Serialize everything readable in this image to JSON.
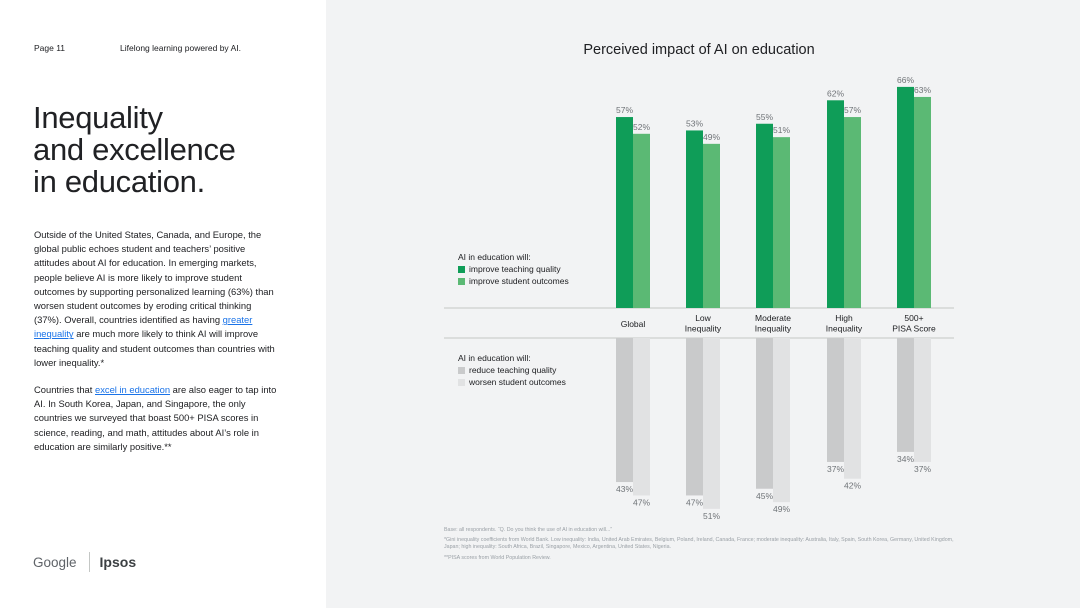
{
  "header": {
    "page_label": "Page 11",
    "running_title": "Lifelong learning powered by AI."
  },
  "headline": [
    "Inequality",
    "and excellence",
    "in education."
  ],
  "body": {
    "p1_a": "Outside of the United States, Canada, and Europe, the global public echoes student and teachers’ positive attitudes about AI for education. In emerging markets, people believe AI is more likely to improve student outcomes by supporting personalized learning (63%) than worsen student outcomes by eroding critical thinking (37%). Overall, countries identified as having ",
    "p1_link": "greater inequality",
    "p1_b": " are much more likely to think AI will improve teaching quality and student outcomes than countries with lower inequality.*",
    "p2_a": "Countries that ",
    "p2_link": "excel in education",
    "p2_b": " are also eager to tap into AI. In South Korea, Japan, and Singapore, the only countries we surveyed that boast 500+ PISA scores in science, reading, and math, attitudes about AI’s role in education are similarly positive.**"
  },
  "logos": {
    "google": "Google",
    "ipsos": "Ipsos"
  },
  "chart_data": {
    "type": "bar",
    "title": "Perceived impact of AI on education",
    "categories": [
      "Global",
      "Low\nInequality",
      "Moderate\nInequality",
      "High\nInequality",
      "500+\nPISA Score"
    ],
    "positive_legend_title": "AI in education will:",
    "negative_legend_title": "AI in education will:",
    "series": [
      {
        "name": "improve teaching quality",
        "direction": "up",
        "color": "#0f9d58",
        "values": [
          57,
          53,
          55,
          62,
          66
        ]
      },
      {
        "name": "improve student outcomes",
        "direction": "up",
        "color": "#5bb974",
        "values": [
          52,
          49,
          51,
          57,
          63
        ]
      },
      {
        "name": "reduce teaching quality",
        "direction": "down",
        "color": "#c9cacb",
        "values": [
          43,
          47,
          45,
          37,
          34
        ]
      },
      {
        "name": "worsen student outcomes",
        "direction": "down",
        "color": "#e1e2e3",
        "values": [
          47,
          51,
          49,
          42,
          37
        ]
      }
    ],
    "value_suffix": "%"
  },
  "footnotes": {
    "base": "Base: all respondents. “Q. Do you think the use of AI in education will...”",
    "gini": "*Gini inequality coefficients from World Bank. Low inequality: India, United Arab Emirates, Belgium, Poland, Ireland, Canada, France; moderate inequality: Australia, Italy, Spain, South Korea, Germany, United Kingdom, Japan; high inequality: South Africa, Brazil, Singapore, Mexico, Argentina, United States, Nigeria.",
    "pisa": "**PISA scores from World Population Review."
  }
}
